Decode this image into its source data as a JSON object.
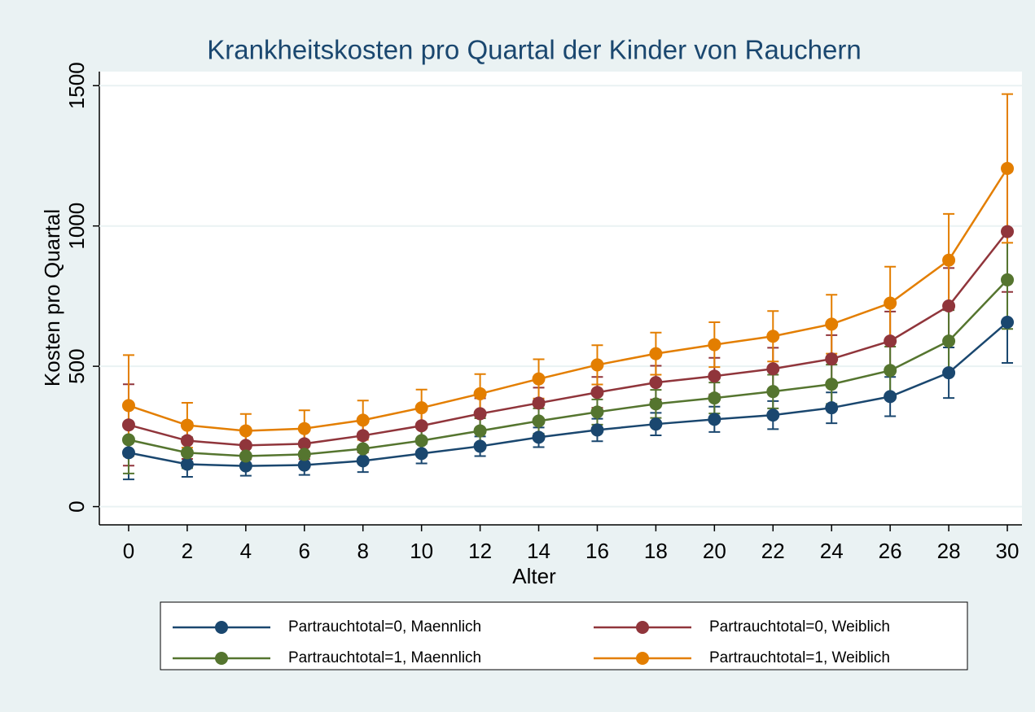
{
  "chart_data": {
    "type": "line",
    "title": "Krankheitskosten pro Quartal der Kinder von Rauchern",
    "x_label": "Alter",
    "y_label": "Kosten pro Quartal",
    "x": [
      0,
      2,
      4,
      6,
      8,
      10,
      12,
      14,
      16,
      18,
      20,
      22,
      24,
      26,
      28,
      30
    ],
    "xlim": [
      -1,
      30.5
    ],
    "xticks": [
      0,
      2,
      4,
      6,
      8,
      10,
      12,
      14,
      16,
      18,
      20,
      22,
      24,
      26,
      28,
      30
    ],
    "ylim": [
      -65,
      1550
    ],
    "yticks": [
      0,
      500,
      1000,
      1500
    ],
    "grid": true,
    "series": [
      {
        "name": "Partrauchtotal=0, Maennlich",
        "color": "#1a476f",
        "values": [
          192,
          151,
          145,
          148,
          163,
          189,
          215,
          247,
          273,
          294,
          311,
          326,
          352,
          392,
          477,
          657
        ],
        "errors": [
          95,
          45,
          35,
          35,
          40,
          35,
          35,
          35,
          40,
          40,
          45,
          50,
          55,
          70,
          90,
          145
        ]
      },
      {
        "name": "Partrauchtotal=0, Weiblich",
        "color": "#90353b",
        "values": [
          291,
          235,
          218,
          224,
          253,
          288,
          331,
          369,
          407,
          442,
          465,
          491,
          526,
          590,
          715,
          980
        ],
        "errors": [
          145,
          65,
          50,
          55,
          60,
          55,
          55,
          55,
          55,
          60,
          65,
          75,
          85,
          105,
          135,
          215
        ]
      },
      {
        "name": "Partrauchtotal=1, Maennlich",
        "color": "#55752f",
        "values": [
          238,
          192,
          180,
          186,
          206,
          235,
          270,
          305,
          337,
          366,
          387,
          410,
          436,
          485,
          590,
          808
        ],
        "errors": [
          120,
          55,
          40,
          45,
          45,
          45,
          45,
          45,
          45,
          50,
          55,
          60,
          70,
          85,
          110,
          175
        ]
      },
      {
        "name": "Partrauchtotal=1, Weiblich",
        "color": "#e37e00",
        "values": [
          360,
          290,
          270,
          278,
          308,
          352,
          402,
          455,
          505,
          545,
          577,
          607,
          650,
          725,
          878,
          1205
        ],
        "errors": [
          180,
          80,
          60,
          65,
          70,
          65,
          70,
          70,
          70,
          75,
          80,
          90,
          105,
          130,
          165,
          265
        ]
      }
    ]
  }
}
